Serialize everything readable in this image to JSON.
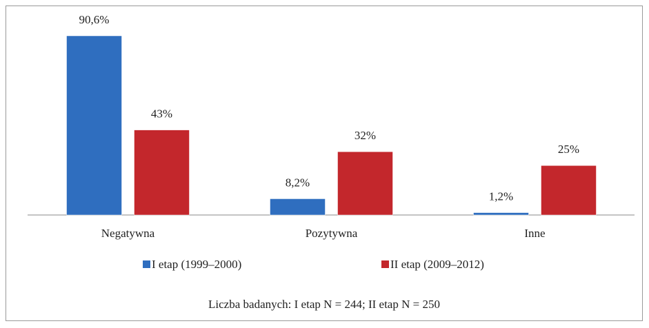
{
  "chart_data": {
    "type": "bar",
    "categories": [
      "Negatywna",
      "Pozytywna",
      "Inne"
    ],
    "series": [
      {
        "name": "I etap (1999–2000)",
        "color": "#2f6ebf",
        "values": [
          90.6,
          8.2,
          1.2
        ],
        "value_labels": [
          "90,6%",
          "8,2%",
          "1,2%"
        ]
      },
      {
        "name": "II etap (2009–2012)",
        "color": "#c3272c",
        "values": [
          43,
          32,
          25
        ],
        "value_labels": [
          "43%",
          "32%",
          "25%"
        ]
      }
    ],
    "note": "Liczba badanych:  I etap N = 244; II etap N = 250"
  }
}
